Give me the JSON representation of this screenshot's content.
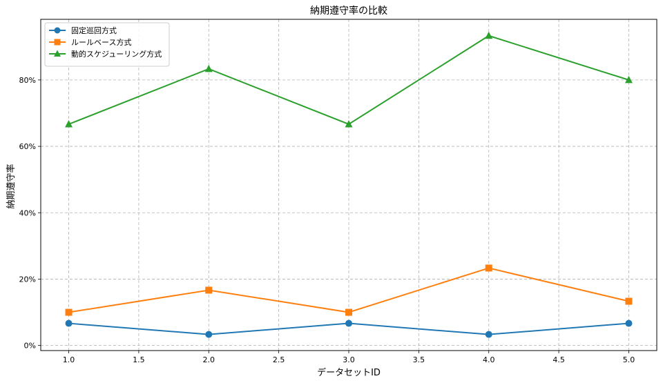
{
  "chart_data": {
    "type": "line",
    "title": "納期遵守率の比較",
    "xlabel": "データセットID",
    "ylabel": "納期遵守率",
    "x": [
      1.0,
      2.0,
      3.0,
      4.0,
      5.0
    ],
    "xlim": [
      0.8,
      5.2
    ],
    "ylim": [
      -0.0153,
      0.9827
    ],
    "xticks": [
      1.0,
      1.5,
      2.0,
      2.5,
      3.0,
      3.5,
      4.0,
      4.5,
      5.0
    ],
    "xtick_labels": [
      "1.0",
      "1.5",
      "2.0",
      "2.5",
      "3.0",
      "3.5",
      "4.0",
      "4.5",
      "5.0"
    ],
    "yticks": [
      0,
      0.2,
      0.4,
      0.6,
      0.8
    ],
    "ytick_labels": [
      "0%",
      "20%",
      "40%",
      "60%",
      "80%"
    ],
    "grid": true,
    "legend_position": "top-left",
    "series": [
      {
        "name": "固定巡回方式",
        "values": [
          0.0667,
          0.0333,
          0.0667,
          0.0333,
          0.0667
        ],
        "color": "#1f77b4",
        "marker": "circle"
      },
      {
        "name": "ルールベース方式",
        "values": [
          0.1,
          0.1667,
          0.1,
          0.2333,
          0.1333
        ],
        "color": "#ff7f0e",
        "marker": "square"
      },
      {
        "name": "動的スケジューリング方式",
        "values": [
          0.6667,
          0.8333,
          0.6667,
          0.9333,
          0.8
        ],
        "color": "#2ca02c",
        "marker": "triangle"
      }
    ]
  }
}
